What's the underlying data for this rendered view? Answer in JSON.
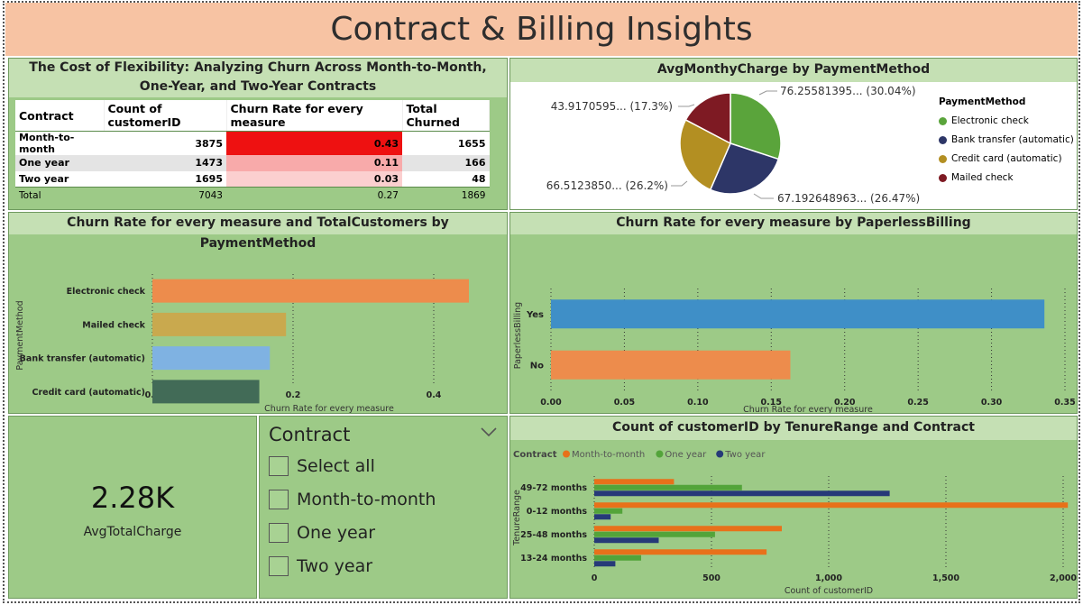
{
  "page": {
    "title": "Contract & Billing Insights"
  },
  "table_panel": {
    "title": "The Cost of Flexibility: Analyzing Churn Across Month-to-Month, One-Year, and Two-Year Contracts",
    "columns": [
      "Contract",
      "Count of customerID",
      "Churn Rate for every measure",
      "Total Churned"
    ],
    "rows": [
      {
        "contract": "Month-to-month",
        "count": "3875",
        "rate": "0.43",
        "churned": "1655",
        "heat": "#ee1111"
      },
      {
        "contract": "One year",
        "count": "1473",
        "rate": "0.11",
        "churned": "166",
        "heat": "#f8aaaa"
      },
      {
        "contract": "Two year",
        "count": "1695",
        "rate": "0.03",
        "churned": "48",
        "heat": "#fbcfcf"
      }
    ],
    "total": {
      "label": "Total",
      "count": "7043",
      "rate": "0.27",
      "churned": "1869"
    }
  },
  "pie_panel": {
    "title": "AvgMonthyCharge by PaymentMethod",
    "legend_title": "PaymentMethod",
    "legend": [
      {
        "label": "Electronic check",
        "color": "#5aa43b"
      },
      {
        "label": "Bank transfer (automatic)",
        "color": "#2d3667"
      },
      {
        "label": "Credit card (automatic)",
        "color": "#b38f22"
      },
      {
        "label": "Mailed check",
        "color": "#7e1a23"
      }
    ],
    "slice_labels": {
      "electronic": "76.25581395... (30.04%)",
      "bank": "67.192648963... (26.47%)",
      "credit": "66.5123850... (26.2%)",
      "mailed": "43.9170595... (17.3%)"
    }
  },
  "payment_panel": {
    "title": "Churn Rate for every measure and TotalCustomers by PaymentMethod",
    "ylabel": "PaymentMethod",
    "xlabel": "Churn Rate for every measure",
    "ticks": [
      "0.0",
      "0.2",
      "0.4"
    ]
  },
  "paperless_panel": {
    "title": "Churn Rate for every measure by PaperlessBilling",
    "ylabel": "PaperlessBilling",
    "xlabel": "Churn Rate for every measure",
    "ticks": [
      "0.00",
      "0.05",
      "0.10",
      "0.15",
      "0.20",
      "0.25",
      "0.30",
      "0.35"
    ]
  },
  "tenure_panel": {
    "title": "Count of customerID by TenureRange and Contract",
    "legend_title": "Contract",
    "legend": [
      {
        "label": "Month-to-month",
        "color": "#e8711a"
      },
      {
        "label": "One year",
        "color": "#53a43a"
      },
      {
        "label": "Two year",
        "color": "#263a78"
      }
    ],
    "ylabel": "TenureRange",
    "xlabel": "Count of customerID",
    "ticks": [
      "0",
      "500",
      "1,000",
      "1,500",
      "2,000"
    ]
  },
  "card": {
    "value": "2.28K",
    "label": "AvgTotalCharge"
  },
  "slicer": {
    "title": "Contract",
    "items": [
      "Select all",
      "Month-to-month",
      "One year",
      "Two year"
    ]
  },
  "chart_data": [
    {
      "type": "table",
      "title": "The Cost of Flexibility: Analyzing Churn Across Month-to-Month, One-Year, and Two-Year Contracts",
      "columns": [
        "Contract",
        "Count of customerID",
        "Churn Rate for every measure",
        "Total Churned"
      ],
      "rows": [
        [
          "Month-to-month",
          3875,
          0.43,
          1655
        ],
        [
          "One year",
          1473,
          0.11,
          166
        ],
        [
          "Two year",
          1695,
          0.03,
          48
        ],
        [
          "Total",
          7043,
          0.27,
          1869
        ]
      ]
    },
    {
      "type": "pie",
      "title": "AvgMonthyCharge by PaymentMethod",
      "categories": [
        "Electronic check",
        "Bank transfer (automatic)",
        "Credit card (automatic)",
        "Mailed check"
      ],
      "values": [
        76.2558,
        67.1926,
        66.5124,
        43.9171
      ],
      "percents": [
        30.04,
        26.47,
        26.2,
        17.3
      ],
      "colors": [
        "#5aa43b",
        "#2d3667",
        "#b38f22",
        "#7e1a23"
      ]
    },
    {
      "type": "bar",
      "orientation": "horizontal",
      "title": "Churn Rate for every measure and TotalCustomers by PaymentMethod",
      "categories": [
        "Electronic check",
        "Mailed check",
        "Bank transfer (automatic)",
        "Credit card (automatic)"
      ],
      "values": [
        0.45,
        0.19,
        0.167,
        0.152
      ],
      "colors": [
        "#ed8c4c",
        "#c9a94e",
        "#7fb2e2",
        "#426b57"
      ],
      "xlim": [
        0,
        0.5
      ],
      "xlabel": "Churn Rate for every measure",
      "ylabel": "PaymentMethod"
    },
    {
      "type": "bar",
      "orientation": "horizontal",
      "title": "Churn Rate for every measure by PaperlessBilling",
      "categories": [
        "Yes",
        "No"
      ],
      "values": [
        0.336,
        0.163
      ],
      "colors": [
        "#3f8fc7",
        "#ed8c4c"
      ],
      "xlim": [
        0,
        0.35
      ],
      "xlabel": "Churn Rate for every measure",
      "ylabel": "PaperlessBilling"
    },
    {
      "type": "bar",
      "orientation": "horizontal",
      "title": "Count of customerID by TenureRange and Contract",
      "categories": [
        "49-72 months",
        "0-12 months",
        "25-48 months",
        "13-24 months"
      ],
      "series": [
        {
          "name": "Month-to-month",
          "values": [
            340,
            2020,
            800,
            735
          ],
          "color": "#e8711a"
        },
        {
          "name": "One year",
          "values": [
            630,
            120,
            515,
            200
          ],
          "color": "#53a43a"
        },
        {
          "name": "Two year",
          "values": [
            1260,
            70,
            275,
            90
          ],
          "color": "#263a78"
        }
      ],
      "xlim": [
        0,
        2000
      ],
      "xlabel": "Count of customerID",
      "ylabel": "TenureRange"
    }
  ]
}
